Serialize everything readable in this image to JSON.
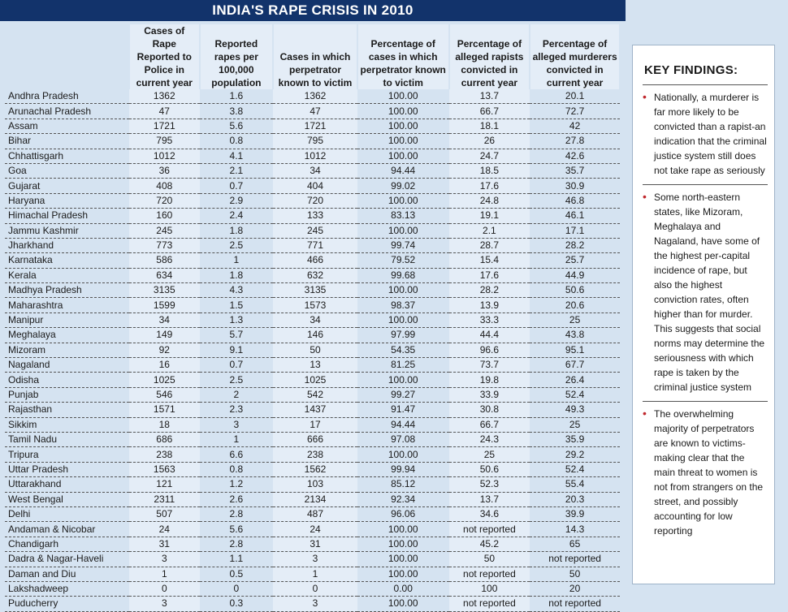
{
  "header": {
    "title": "INDIA'S RAPE CRISIS IN 2010"
  },
  "table": {
    "columns": [
      "",
      "Cases of Rape Reported to Police in current year",
      "Reported rapes per 100,000 population",
      "Cases in which perpetrator known to victim",
      "Percentage of cases in which perpetrator known to victim",
      "Percentage of alleged rapists convicted in current year",
      "Percentage of alleged murderers convicted in current year"
    ],
    "rows": [
      [
        "Andhra Pradesh",
        "1362",
        "1.6",
        "1362",
        "100.00",
        "13.7",
        "20.1"
      ],
      [
        "Arunachal Pradesh",
        "47",
        "3.8",
        "47",
        "100.00",
        "66.7",
        "72.7"
      ],
      [
        "Assam",
        "1721",
        "5.6",
        "1721",
        "100.00",
        "18.1",
        "42"
      ],
      [
        "Bihar",
        "795",
        "0.8",
        "795",
        "100.00",
        "26",
        "27.8"
      ],
      [
        "Chhattisgarh",
        "1012",
        "4.1",
        "1012",
        "100.00",
        "24.7",
        "42.6"
      ],
      [
        "Goa",
        "36",
        "2.1",
        "34",
        "94.44",
        "18.5",
        "35.7"
      ],
      [
        "Gujarat",
        "408",
        "0.7",
        "404",
        "99.02",
        "17.6",
        "30.9"
      ],
      [
        "Haryana",
        "720",
        "2.9",
        "720",
        "100.00",
        "24.8",
        "46.8"
      ],
      [
        "Himachal Pradesh",
        "160",
        "2.4",
        "133",
        "83.13",
        "19.1",
        "46.1"
      ],
      [
        "Jammu Kashmir",
        "245",
        "1.8",
        "245",
        "100.00",
        "2.1",
        "17.1"
      ],
      [
        "Jharkhand",
        "773",
        "2.5",
        "771",
        "99.74",
        "28.7",
        "28.2"
      ],
      [
        "Karnataka",
        "586",
        "1",
        "466",
        "79.52",
        "15.4",
        "25.7"
      ],
      [
        "Kerala",
        "634",
        "1.8",
        "632",
        "99.68",
        "17.6",
        "44.9"
      ],
      [
        "Madhya Pradesh",
        "3135",
        "4.3",
        "3135",
        "100.00",
        "28.2",
        "50.6"
      ],
      [
        "Maharashtra",
        "1599",
        "1.5",
        "1573",
        "98.37",
        "13.9",
        "20.6"
      ],
      [
        "Manipur",
        "34",
        "1.3",
        "34",
        "100.00",
        "33.3",
        "25"
      ],
      [
        "Meghalaya",
        "149",
        "5.7",
        "146",
        "97.99",
        "44.4",
        "43.8"
      ],
      [
        "Mizoram",
        "92",
        "9.1",
        "50",
        "54.35",
        "96.6",
        "95.1"
      ],
      [
        "Nagaland",
        "16",
        "0.7",
        "13",
        "81.25",
        "73.7",
        "67.7"
      ],
      [
        "Odisha",
        "1025",
        "2.5",
        "1025",
        "100.00",
        "19.8",
        "26.4"
      ],
      [
        "Punjab",
        "546",
        "2",
        "542",
        "99.27",
        "33.9",
        "52.4"
      ],
      [
        "Rajasthan",
        "1571",
        "2.3",
        "1437",
        "91.47",
        "30.8",
        "49.3"
      ],
      [
        "Sikkim",
        "18",
        "3",
        "17",
        "94.44",
        "66.7",
        "25"
      ],
      [
        "Tamil Nadu",
        "686",
        "1",
        "666",
        "97.08",
        "24.3",
        "35.9"
      ],
      [
        "Tripura",
        "238",
        "6.6",
        "238",
        "100.00",
        "25",
        "29.2"
      ],
      [
        "Uttar Pradesh",
        "1563",
        "0.8",
        "1562",
        "99.94",
        "50.6",
        "52.4"
      ],
      [
        "Uttarakhand",
        "121",
        "1.2",
        "103",
        "85.12",
        "52.3",
        "55.4"
      ],
      [
        "West Bengal",
        "2311",
        "2.6",
        "2134",
        "92.34",
        "13.7",
        "20.3"
      ],
      [
        "Delhi",
        "507",
        "2.8",
        "487",
        "96.06",
        "34.6",
        "39.9"
      ],
      [
        "Andaman & Nicobar",
        "24",
        "5.6",
        "24",
        "100.00",
        "not reported",
        "14.3"
      ],
      [
        "Chandigarh",
        "31",
        "2.8",
        "31",
        "100.00",
        "45.2",
        "65"
      ],
      [
        "Dadra & Nagar-Haveli",
        "3",
        "1.1",
        "3",
        "100.00",
        "50",
        "not reported"
      ],
      [
        "Daman and Diu",
        "1",
        "0.5",
        "1",
        "100.00",
        "not reported",
        "50"
      ],
      [
        "Lakshadweep",
        "0",
        "0",
        "0",
        "0.00",
        "100",
        "20"
      ],
      [
        "Puducherry",
        "3",
        "0.3",
        "3",
        "100.00",
        "not reported",
        "not reported"
      ]
    ]
  },
  "key_findings": {
    "title": "KEY FINDINGS:",
    "items": [
      "Nationally, a murderer is far more likely to be convicted than a rapist-an indication that the criminal justice system still does not take rape as seriously",
      "Some north-eastern states, like Mizoram, Meghalaya and Nagaland, have some of the highest per-capital incidence of rape, but also the highest conviction rates, often higher than for murder. This suggests that social norms may determine the seriousness with which rape is taken by the criminal justice system",
      "The overwhelming majority of perpetrators are known to victims-making clear that the main threat to women is not from strangers on the street, and possibly accounting for low reporting"
    ]
  }
}
